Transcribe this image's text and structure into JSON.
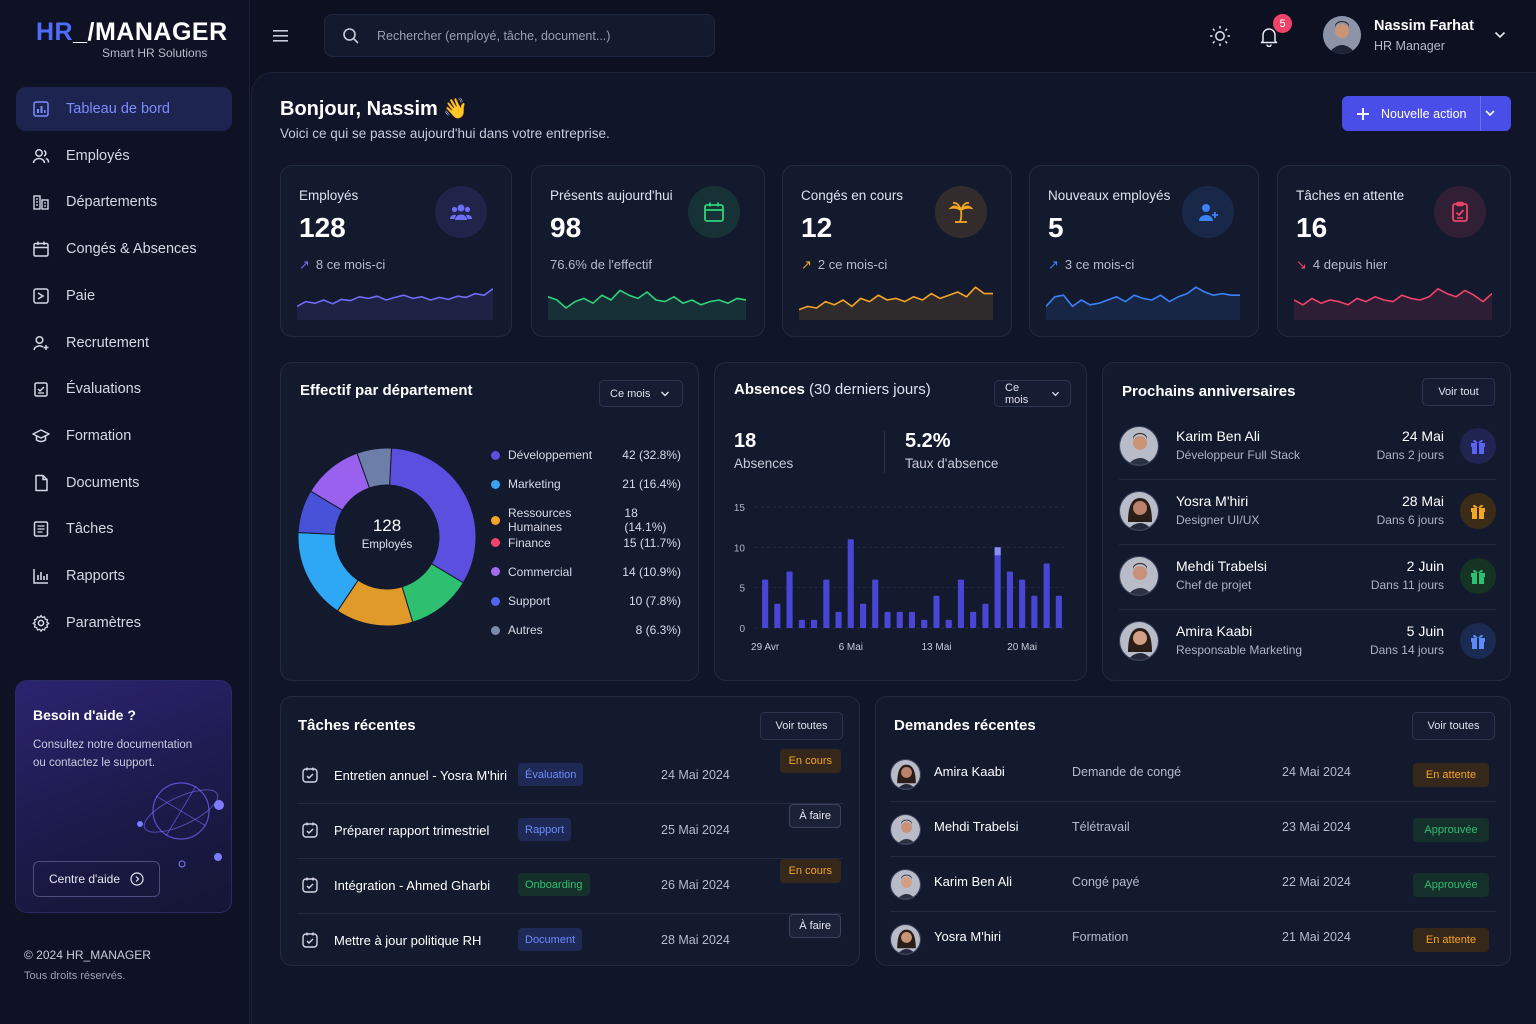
{
  "logo": {
    "brand_hr": "HR",
    "brand_rest": "_/MANAGER",
    "tagline": "Smart HR Solutions"
  },
  "sidebar": {
    "items": [
      {
        "label": "Tableau de bord",
        "icon": "dashboard-icon",
        "active": true
      },
      {
        "label": "Employés",
        "icon": "users-icon"
      },
      {
        "label": "Départements",
        "icon": "building-icon"
      },
      {
        "label": "Congés & Absences",
        "icon": "calendar-icon"
      },
      {
        "label": "Paie",
        "icon": "payroll-icon"
      },
      {
        "label": "Recrutement",
        "icon": "user-add-icon"
      },
      {
        "label": "Évaluations",
        "icon": "clipboard-icon"
      },
      {
        "label": "Formation",
        "icon": "graduation-cap-icon"
      },
      {
        "label": "Documents",
        "icon": "document-icon"
      },
      {
        "label": "Tâches",
        "icon": "checklist-icon"
      },
      {
        "label": "Rapports",
        "icon": "bar-chart-icon"
      },
      {
        "label": "Paramètres",
        "icon": "gear-icon"
      }
    ],
    "help": {
      "title": "Besoin d'aide ?",
      "text_line1": "Consultez notre documentation",
      "text_line2": "ou contactez le support.",
      "button": "Centre d'aide"
    },
    "footer_line1": "© 2024 HR_MANAGER",
    "footer_line2": "Tous droits réservés."
  },
  "header": {
    "search_placeholder": "Rechercher (employé, tâche, document...)",
    "notifications_count": "5",
    "user_name": "Nassim Farhat",
    "user_role": "HR Manager"
  },
  "greeting": {
    "title": "Bonjour, Nassim",
    "emoji": "👋",
    "subtitle": "Voici ce qui se passe aujourd'hui dans votre entreprise.",
    "action_button": "Nouvelle action"
  },
  "stats": [
    {
      "title": "Employés",
      "value": "128",
      "trend": "↗",
      "sub": "8 ce mois-ci",
      "color": "#6f6cf5",
      "icon": "team-icon"
    },
    {
      "title": "Présents aujourd'hui",
      "value": "98",
      "trend": "",
      "sub": "76.6% de l'effectif",
      "color": "#2ed47a",
      "icon": "calendar-check-icon"
    },
    {
      "title": "Congés en cours",
      "value": "12",
      "trend": "↗",
      "sub": "2 ce mois-ci",
      "color": "#f5a524",
      "icon": "palm-tree-icon"
    },
    {
      "title": "Nouveaux employés",
      "value": "5",
      "trend": "↗",
      "sub": "3 ce mois-ci",
      "color": "#3b82f6",
      "icon": "user-plus-icon"
    },
    {
      "title": "Tâches en attente",
      "value": "16",
      "trend": "↘",
      "sub": "4 depuis hier",
      "color": "#f0436a",
      "icon": "clipboard-check-icon"
    }
  ],
  "departments": {
    "title": "Effectif par département",
    "filter": "Ce mois",
    "center_value": "128",
    "center_label": "Employés",
    "chart_data": {
      "type": "pie",
      "categories": [
        "Développement",
        "Marketing",
        "Ressources Humaines",
        "Finance",
        "Commercial",
        "Support",
        "Autres"
      ],
      "values": [
        42,
        21,
        18,
        15,
        14,
        10,
        8
      ],
      "labels": [
        "42 (32.8%)",
        "21 (16.4%)",
        "18 (14.1%)",
        "15 (11.7%)",
        "14 (10.9%)",
        "10 (7.8%)",
        "8 (6.3%)"
      ],
      "legend_colors": [
        "#5b4fe0",
        "#3ba3f6",
        "#f5a524",
        "#f0436a",
        "#a26cf0",
        "#5263f0",
        "#7b8ba8"
      ],
      "slice_order": [
        "Développement",
        "Finance",
        "Ressources Humaines",
        "Marketing",
        "Support",
        "Commercial",
        "Autres"
      ],
      "slice_colors": [
        "#5b4fe0",
        "#2fbf71",
        "#e09a2a",
        "#2ea8f5",
        "#4752d8",
        "#9a60ee",
        "#6d7fa8"
      ],
      "legend": "right"
    }
  },
  "absences": {
    "title": "Absences",
    "title_suffix": "(30 derniers jours)",
    "filter": "Ce mois",
    "count_value": "18",
    "count_label": "Absences",
    "rate_value": "5.2%",
    "rate_label": "Taux d'absence",
    "chart_data": {
      "type": "bar",
      "y_ticks": [
        "0",
        "5",
        "10",
        "15"
      ],
      "ylim": [
        0,
        15
      ],
      "x_ticks": [
        "29 Avr",
        "6 Mai",
        "13 Mai",
        "20 Mai"
      ],
      "x_tick_index": [
        0,
        7,
        14,
        21
      ],
      "values": [
        6,
        3,
        7,
        1,
        1,
        6,
        2,
        11,
        3,
        6,
        2,
        2,
        2,
        1,
        4,
        1,
        6,
        2,
        3,
        10,
        7,
        6,
        4,
        8,
        4
      ],
      "highlight_index": 19,
      "color": "#4b45d6",
      "highlight_color": "#8c8df5",
      "grid": true
    }
  },
  "birthdays": {
    "title": "Prochains anniversaires",
    "action": "Voir tout",
    "items": [
      {
        "name": "Karim Ben Ali",
        "role": "Développeur Full Stack",
        "date": "24 Mai",
        "days": "Dans 2 jours",
        "color": "#5b63f0",
        "bg": "#1f2550"
      },
      {
        "name": "Yosra M'hiri",
        "role": "Designer UI/UX",
        "date": "28 Mai",
        "days": "Dans 6 jours",
        "color": "#f5a524",
        "bg": "#3a2c16"
      },
      {
        "name": "Mehdi Trabelsi",
        "role": "Chef de projet",
        "date": "2 Juin",
        "days": "Dans 11 jours",
        "color": "#2fbf71",
        "bg": "#163424"
      },
      {
        "name": "Amira Kaabi",
        "role": "Responsable Marketing",
        "date": "5 Juin",
        "days": "Dans 14 jours",
        "color": "#5b8bf5",
        "bg": "#1b2a50"
      }
    ]
  },
  "tasks": {
    "title": "Tâches récentes",
    "action": "Voir toutes",
    "items": [
      {
        "title": "Entretien annuel - Yosra M'hiri",
        "tag": "Évaluation",
        "tag_color": "#6c8cff",
        "tag_bg": "#1e2a55",
        "date": "24 Mai 2024",
        "status": "En cours",
        "status_color": "#f5a524",
        "status_bg": "#35281a"
      },
      {
        "title": "Préparer rapport trimestriel",
        "tag": "Rapport",
        "tag_color": "#6c8cff",
        "tag_bg": "#1e2a55",
        "date": "25 Mai 2024",
        "status": "À faire",
        "status_color": "#e6e8f0",
        "status_bg": "#1b2136"
      },
      {
        "title": "Intégration - Ahmed Gharbi",
        "tag": "Onboarding",
        "tag_color": "#2fbf71",
        "tag_bg": "#15302a",
        "date": "26 Mai 2024",
        "status": "En cours",
        "status_color": "#f5a524",
        "status_bg": "#35281a"
      },
      {
        "title": "Mettre à jour politique RH",
        "tag": "Document",
        "tag_color": "#6c8cff",
        "tag_bg": "#1e2a55",
        "date": "28 Mai 2024",
        "status": "À faire",
        "status_color": "#e6e8f0",
        "status_bg": "#1b2136"
      }
    ]
  },
  "requests": {
    "title": "Demandes récentes",
    "action": "Voir toutes",
    "items": [
      {
        "name": "Amira Kaabi",
        "type": "Demande de congé",
        "date": "24 Mai 2024",
        "status": "En attente",
        "status_color": "#f5a524",
        "status_bg": "#35281a"
      },
      {
        "name": "Mehdi Trabelsi",
        "type": "Télétravail",
        "date": "23 Mai 2024",
        "status": "Approuvée",
        "status_color": "#2fbf71",
        "status_bg": "#15302a"
      },
      {
        "name": "Karim Ben Ali",
        "type": "Congé payé",
        "date": "22 Mai 2024",
        "status": "Approuvée",
        "status_color": "#2fbf71",
        "status_bg": "#15302a"
      },
      {
        "name": "Yosra M'hiri",
        "type": "Formation",
        "date": "21 Mai 2024",
        "status": "En attente",
        "status_color": "#f5a524",
        "status_bg": "#35281a"
      }
    ]
  }
}
